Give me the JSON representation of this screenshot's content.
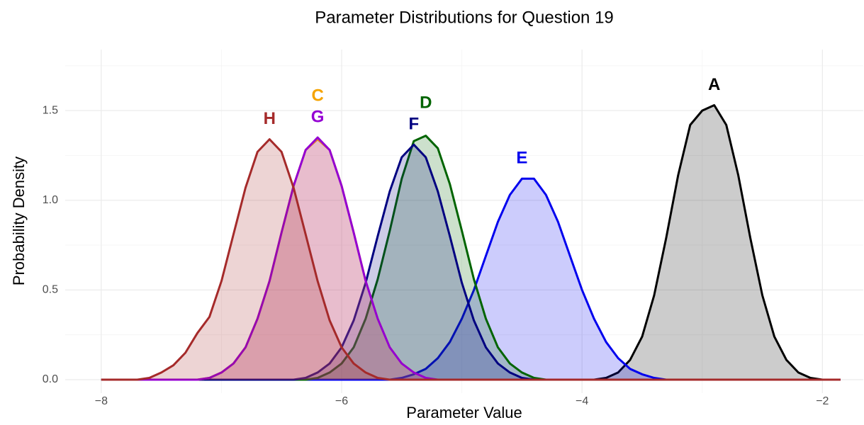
{
  "chart_data": {
    "type": "density",
    "title": "Parameter Distributions for Question 19",
    "xlabel": "Parameter Value",
    "ylabel": "Probability Density",
    "xlim": [
      -8.3,
      -1.66
    ],
    "ylim": [
      -0.075,
      1.84
    ],
    "xticks": [
      {
        "value": -8,
        "label": "−8"
      },
      {
        "value": -6,
        "label": "−6"
      },
      {
        "value": -4,
        "label": "−4"
      },
      {
        "value": -2,
        "label": "−2"
      }
    ],
    "yticks": [
      {
        "value": 0,
        "label": "0.0"
      },
      0.5,
      {
        "value": 1,
        "label": "1.0"
      },
      1.5
    ],
    "x_minor_ticks": [
      -7,
      -5,
      -3
    ],
    "y_minor_ticks": [
      0.25,
      0.75,
      1.25,
      1.75
    ],
    "grid": true,
    "series": [
      {
        "name": "A",
        "color": "#000000",
        "x": [
          -8,
          -3.9,
          -3.8,
          -3.7,
          -3.6,
          -3.5,
          -3.4,
          -3.3,
          -3.2,
          -3.1,
          -3.0,
          -2.9,
          -2.8,
          -2.7,
          -2.6,
          -2.5,
          -2.4,
          -2.3,
          -2.2,
          -2.1,
          -2.0,
          -1.85
        ],
        "values": [
          0,
          0,
          0.01,
          0.04,
          0.11,
          0.24,
          0.47,
          0.79,
          1.14,
          1.42,
          1.5,
          1.53,
          1.42,
          1.14,
          0.79,
          0.47,
          0.24,
          0.11,
          0.04,
          0.01,
          0,
          0
        ]
      },
      {
        "name": "E",
        "color": "#0000ee",
        "x": [
          -8,
          -5.6,
          -5.5,
          -5.4,
          -5.3,
          -5.2,
          -5.1,
          -5.0,
          -4.9,
          -4.8,
          -4.7,
          -4.6,
          -4.5,
          -4.4,
          -4.3,
          -4.2,
          -4.1,
          -4.0,
          -3.9,
          -3.8,
          -3.7,
          -3.6,
          -3.5,
          -3.4,
          -3.3,
          -1.85
        ],
        "values": [
          0,
          0,
          0.01,
          0.03,
          0.06,
          0.12,
          0.21,
          0.34,
          0.5,
          0.69,
          0.88,
          1.03,
          1.12,
          1.12,
          1.03,
          0.88,
          0.69,
          0.5,
          0.34,
          0.21,
          0.12,
          0.06,
          0.03,
          0.01,
          0,
          0
        ]
      },
      {
        "name": "D",
        "color": "#006400",
        "x": [
          -8,
          -6.3,
          -6.2,
          -6.1,
          -6.0,
          -5.9,
          -5.8,
          -5.7,
          -5.6,
          -5.5,
          -5.4,
          -5.3,
          -5.2,
          -5.1,
          -5.0,
          -4.9,
          -4.8,
          -4.7,
          -4.6,
          -4.5,
          -4.4,
          -4.3,
          -1.85
        ],
        "values": [
          0,
          0,
          0.01,
          0.04,
          0.09,
          0.18,
          0.34,
          0.56,
          0.83,
          1.12,
          1.33,
          1.36,
          1.29,
          1.09,
          0.83,
          0.56,
          0.34,
          0.18,
          0.09,
          0.04,
          0.01,
          0,
          0
        ]
      },
      {
        "name": "F",
        "color": "#000080",
        "x": [
          -8,
          -6.4,
          -6.3,
          -6.2,
          -6.1,
          -6.0,
          -5.9,
          -5.8,
          -5.7,
          -5.6,
          -5.5,
          -5.4,
          -5.3,
          -5.2,
          -5.1,
          -5.0,
          -4.9,
          -4.8,
          -4.7,
          -4.6,
          -4.5,
          -4.4,
          -1.85
        ],
        "values": [
          0,
          0,
          0.01,
          0.04,
          0.09,
          0.18,
          0.33,
          0.54,
          0.8,
          1.05,
          1.24,
          1.31,
          1.24,
          1.05,
          0.8,
          0.54,
          0.33,
          0.18,
          0.09,
          0.04,
          0.01,
          0,
          0
        ]
      },
      {
        "name": "C",
        "color": "#f5a300",
        "x": [
          -8,
          -7.2,
          -7.1,
          -7.0,
          -6.9,
          -6.8,
          -6.7,
          -6.6,
          -6.5,
          -6.4,
          -6.3,
          -6.2,
          -6.1,
          -6.0,
          -5.9,
          -5.8,
          -5.7,
          -5.6,
          -5.5,
          -5.4,
          -5.3,
          -5.2,
          -1.85
        ],
        "values": [
          0,
          0,
          0.01,
          0.04,
          0.09,
          0.18,
          0.34,
          0.55,
          0.82,
          1.08,
          1.28,
          1.34,
          1.28,
          1.08,
          0.82,
          0.55,
          0.34,
          0.18,
          0.09,
          0.04,
          0.01,
          0,
          0
        ]
      },
      {
        "name": "G",
        "color": "#9400d3",
        "x": [
          -8,
          -7.2,
          -7.1,
          -7.0,
          -6.9,
          -6.8,
          -6.7,
          -6.6,
          -6.5,
          -6.4,
          -6.3,
          -6.2,
          -6.1,
          -6.0,
          -5.9,
          -5.8,
          -5.7,
          -5.6,
          -5.5,
          -5.4,
          -5.3,
          -5.2,
          -1.85
        ],
        "values": [
          0,
          0,
          0.01,
          0.04,
          0.09,
          0.18,
          0.34,
          0.55,
          0.82,
          1.08,
          1.28,
          1.35,
          1.28,
          1.08,
          0.82,
          0.55,
          0.34,
          0.18,
          0.09,
          0.04,
          0.01,
          0,
          0
        ]
      },
      {
        "name": "H",
        "color": "#a52a2a",
        "x": [
          -8,
          -7.7,
          -7.6,
          -7.5,
          -7.4,
          -7.3,
          -7.2,
          -7.1,
          -7.0,
          -6.9,
          -6.8,
          -6.7,
          -6.6,
          -6.5,
          -6.4,
          -6.3,
          -6.2,
          -6.1,
          -6.0,
          -5.9,
          -5.8,
          -5.7,
          -5.6,
          -1.85
        ],
        "values": [
          0,
          0,
          0.01,
          0.04,
          0.08,
          0.15,
          0.26,
          0.35,
          0.55,
          0.81,
          1.07,
          1.27,
          1.34,
          1.27,
          1.07,
          0.81,
          0.55,
          0.33,
          0.18,
          0.09,
          0.04,
          0.01,
          0,
          0
        ]
      }
    ]
  }
}
